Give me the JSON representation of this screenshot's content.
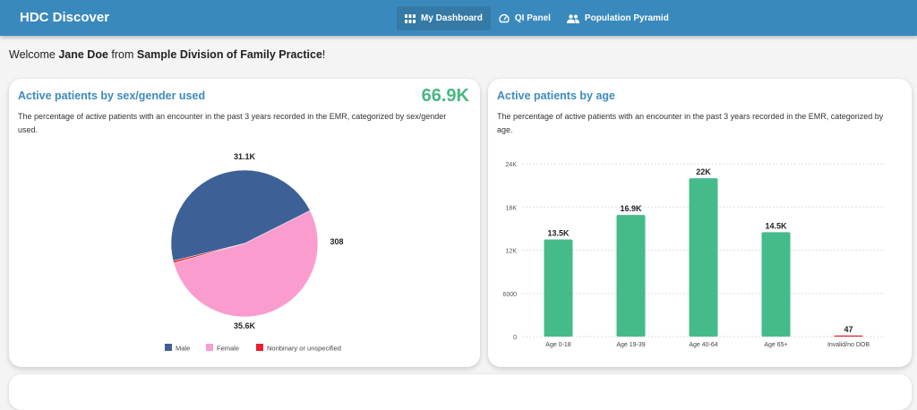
{
  "header": {
    "brand": "HDC Discover",
    "nav": [
      {
        "label": "My Dashboard",
        "icon": "grid-icon",
        "active": true
      },
      {
        "label": "QI Panel",
        "icon": "gauge-icon",
        "active": false
      },
      {
        "label": "Population Pyramid",
        "icon": "people-icon",
        "active": false
      }
    ]
  },
  "welcome": {
    "prefix": "Welcome ",
    "user": "Jane Doe",
    "middle": " from ",
    "org": "Sample Division of Family Practice",
    "suffix": "!"
  },
  "cards": {
    "sex_gender": {
      "title": "Active patients by sex/gender used",
      "total": "66.9K",
      "description": "The percentage of active patients with an encounter in the past 3 years recorded in the EMR, categorized by sex/gender used."
    },
    "age": {
      "title": "Active patients by age",
      "description": "The percentage of active patients with an encounter in the past 3 years recorded in the EMR, categorized by age."
    }
  },
  "chart_data": [
    {
      "type": "pie",
      "title": "Active patients by sex/gender used",
      "categories": [
        "Male",
        "Female",
        "Nonbinary or unspecified"
      ],
      "values": [
        31100,
        35600,
        308
      ],
      "labels": [
        "31.1K",
        "35.6K",
        "308"
      ],
      "colors": [
        "#3d6197",
        "#fb9ccf",
        "#e8212b"
      ],
      "legend": "bottom"
    },
    {
      "type": "bar",
      "title": "Active patients by age",
      "categories": [
        "Age 0-18",
        "Age 19-39",
        "Age 40-64",
        "Age 65+",
        "Invalid/no DOB"
      ],
      "values": [
        13500,
        16900,
        22000,
        14500,
        47
      ],
      "labels": [
        "13.5K",
        "16.9K",
        "22K",
        "14.5K",
        "47"
      ],
      "colors": [
        "#45bb89",
        "#45bb89",
        "#45bb89",
        "#45bb89",
        "#e8212b"
      ],
      "ylim": [
        0,
        24000
      ],
      "yticks": [
        0,
        6000,
        12000,
        18000,
        24000
      ],
      "ytick_labels": [
        "0",
        "6000",
        "12K",
        "18K",
        "24K"
      ],
      "grid": true,
      "xlabel": "",
      "ylabel": ""
    }
  ]
}
